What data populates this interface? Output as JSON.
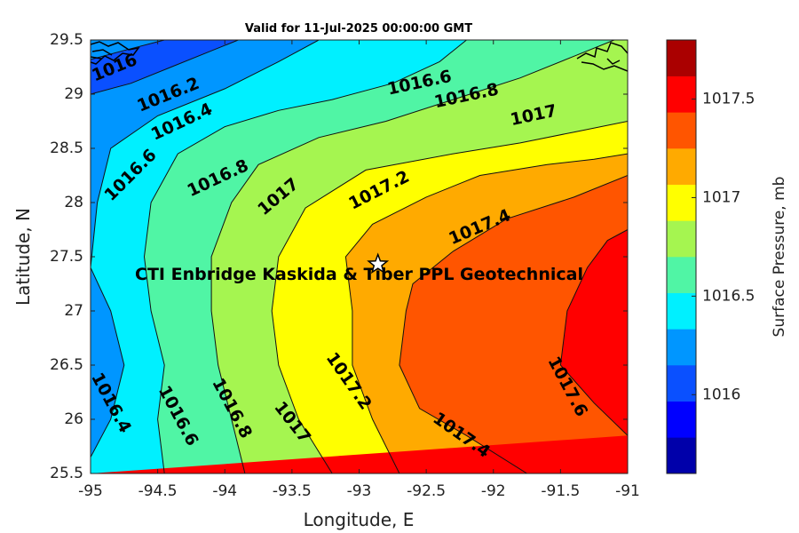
{
  "chart_data": {
    "type": "heatmap",
    "title": "Valid for 11-Jul-2025 00:00:00 GMT",
    "xlabel": "Longitude, E",
    "ylabel": "Latitude, N",
    "xlim": [
      -95,
      -91
    ],
    "ylim": [
      25.5,
      29.5
    ],
    "xticks": [
      "-95",
      "-94.5",
      "-94",
      "-93.5",
      "-93",
      "-92.5",
      "-92",
      "-91.5",
      "-91"
    ],
    "yticks": [
      "25.5",
      "26",
      "26.5",
      "27",
      "27.5",
      "28",
      "28.5",
      "29",
      "29.5"
    ],
    "colorbar": {
      "label": "Surface Pressure, mb",
      "range": [
        1015.6,
        1017.8
      ],
      "step": 0.2,
      "ticks": [
        "1016",
        "1016.5",
        "1017",
        "1017.5"
      ],
      "colors": [
        "#0000aa",
        "#0000ff",
        "#0a50ff",
        "#0096ff",
        "#00f0ff",
        "#50f5a5",
        "#a5f550",
        "#ffff00",
        "#ffaa00",
        "#ff5500",
        "#ff0000",
        "#aa0000"
      ]
    },
    "contours": [
      {
        "level": "1016",
        "points": [
          [
            -95,
            29.32
          ],
          [
            -94.7,
            29.42
          ],
          [
            -94.45,
            29.5
          ]
        ]
      },
      {
        "level": "1016.2",
        "points": [
          [
            -95,
            29.0
          ],
          [
            -94.7,
            29.1
          ],
          [
            -94.4,
            29.25
          ],
          [
            -94.1,
            29.4
          ],
          [
            -93.9,
            29.5
          ]
        ]
      },
      {
        "level": "1016.4",
        "points": [
          [
            -95,
            25.65
          ],
          [
            -94.85,
            26.0
          ],
          [
            -94.75,
            26.5
          ],
          [
            -94.85,
            27.0
          ],
          [
            -95,
            27.4
          ],
          [
            -94.95,
            28.0
          ],
          [
            -94.85,
            28.5
          ],
          [
            -94.5,
            28.8
          ],
          [
            -94.0,
            29.05
          ],
          [
            -93.6,
            29.3
          ],
          [
            -93.3,
            29.5
          ]
        ]
      },
      {
        "level": "1016.6",
        "points": [
          [
            -94.45,
            25.5
          ],
          [
            -94.5,
            26.0
          ],
          [
            -94.45,
            26.5
          ],
          [
            -94.55,
            27.0
          ],
          [
            -94.6,
            27.5
          ],
          [
            -94.55,
            28.0
          ],
          [
            -94.35,
            28.45
          ],
          [
            -94.0,
            28.7
          ],
          [
            -93.6,
            28.85
          ],
          [
            -93.2,
            28.95
          ],
          [
            -92.75,
            29.1
          ],
          [
            -92.4,
            29.3
          ],
          [
            -92.2,
            29.5
          ]
        ]
      },
      {
        "level": "1016.8",
        "points": [
          [
            -93.85,
            25.5
          ],
          [
            -93.95,
            26.0
          ],
          [
            -94.05,
            26.5
          ],
          [
            -94.1,
            27.0
          ],
          [
            -94.1,
            27.5
          ],
          [
            -93.95,
            28.0
          ],
          [
            -93.75,
            28.35
          ],
          [
            -93.3,
            28.6
          ],
          [
            -92.8,
            28.75
          ],
          [
            -92.3,
            28.95
          ],
          [
            -91.8,
            29.15
          ],
          [
            -91.4,
            29.35
          ],
          [
            -91.1,
            29.5
          ]
        ]
      },
      {
        "level": "1017",
        "points": [
          [
            -93.2,
            25.5
          ],
          [
            -93.45,
            26.0
          ],
          [
            -93.6,
            26.5
          ],
          [
            -93.65,
            27.0
          ],
          [
            -93.6,
            27.5
          ],
          [
            -93.4,
            27.95
          ],
          [
            -92.95,
            28.3
          ],
          [
            -92.3,
            28.45
          ],
          [
            -91.8,
            28.55
          ],
          [
            -91.4,
            28.65
          ],
          [
            -91.0,
            28.75
          ]
        ]
      },
      {
        "level": "1017.2",
        "points": [
          [
            -92.7,
            25.5
          ],
          [
            -92.9,
            26.0
          ],
          [
            -93.05,
            26.5
          ],
          [
            -93.05,
            27.0
          ],
          [
            -93.1,
            27.5
          ],
          [
            -92.9,
            27.8
          ],
          [
            -92.5,
            28.05
          ],
          [
            -92.1,
            28.25
          ],
          [
            -91.6,
            28.35
          ],
          [
            -91.25,
            28.4
          ],
          [
            -91.0,
            28.45
          ]
        ]
      },
      {
        "level": "1017.4",
        "points": [
          [
            -91.75,
            25.5
          ],
          [
            -92.2,
            25.85
          ],
          [
            -92.55,
            26.1
          ],
          [
            -92.7,
            26.5
          ],
          [
            -92.65,
            27.0
          ],
          [
            -92.6,
            27.25
          ],
          [
            -92.3,
            27.55
          ],
          [
            -91.9,
            27.85
          ],
          [
            -91.4,
            28.05
          ],
          [
            -91.0,
            28.25
          ]
        ]
      },
      {
        "level": "1017.6",
        "points": [
          [
            -91.0,
            25.85
          ],
          [
            -91.25,
            26.15
          ],
          [
            -91.5,
            26.5
          ],
          [
            -91.45,
            27.0
          ],
          [
            -91.3,
            27.4
          ],
          [
            -91.15,
            27.65
          ],
          [
            -91.0,
            27.75
          ]
        ]
      }
    ],
    "contour_labels": [
      {
        "text": "1016",
        "x": -94.82,
        "y": 29.24,
        "angle": -22
      },
      {
        "text": "1016.2",
        "x": -94.42,
        "y": 28.99,
        "angle": -22
      },
      {
        "text": "1016.4",
        "x": -94.32,
        "y": 28.74,
        "angle": -25
      },
      {
        "text": "1016.6",
        "x": -94.7,
        "y": 28.25,
        "angle": -45
      },
      {
        "text": "1016.8",
        "x": -94.05,
        "y": 28.22,
        "angle": -25
      },
      {
        "text": "1017",
        "x": -93.6,
        "y": 28.05,
        "angle": -40
      },
      {
        "text": "1017.2",
        "x": -92.85,
        "y": 28.11,
        "angle": -27
      },
      {
        "text": "1017.4",
        "x": -92.1,
        "y": 27.77,
        "angle": -23
      },
      {
        "text": "1016.6",
        "x": -92.55,
        "y": 29.1,
        "angle": -12
      },
      {
        "text": "1016.8",
        "x": -92.2,
        "y": 28.98,
        "angle": -12
      },
      {
        "text": "1017",
        "x": -91.7,
        "y": 28.8,
        "angle": -12
      },
      {
        "text": "1016.4",
        "x": -94.85,
        "y": 26.15,
        "angle": 62
      },
      {
        "text": "1016.6",
        "x": -94.35,
        "y": 26.03,
        "angle": 62
      },
      {
        "text": "1016.8",
        "x": -93.95,
        "y": 26.1,
        "angle": 62
      },
      {
        "text": "1017",
        "x": -93.5,
        "y": 25.97,
        "angle": 52
      },
      {
        "text": "1017.2",
        "x": -93.08,
        "y": 26.35,
        "angle": 55
      },
      {
        "text": "1017.4",
        "x": -92.24,
        "y": 25.85,
        "angle": 35
      },
      {
        "text": "1017.6",
        "x": -91.45,
        "y": 26.3,
        "angle": 62
      }
    ],
    "annotations": [
      {
        "text": "CTI Enbridge  Kaskida & Tiber PPL Geotechnical",
        "x": -93.0,
        "y": 27.33
      }
    ],
    "marker": {
      "type": "star",
      "x": -92.86,
      "y": 27.43
    }
  }
}
